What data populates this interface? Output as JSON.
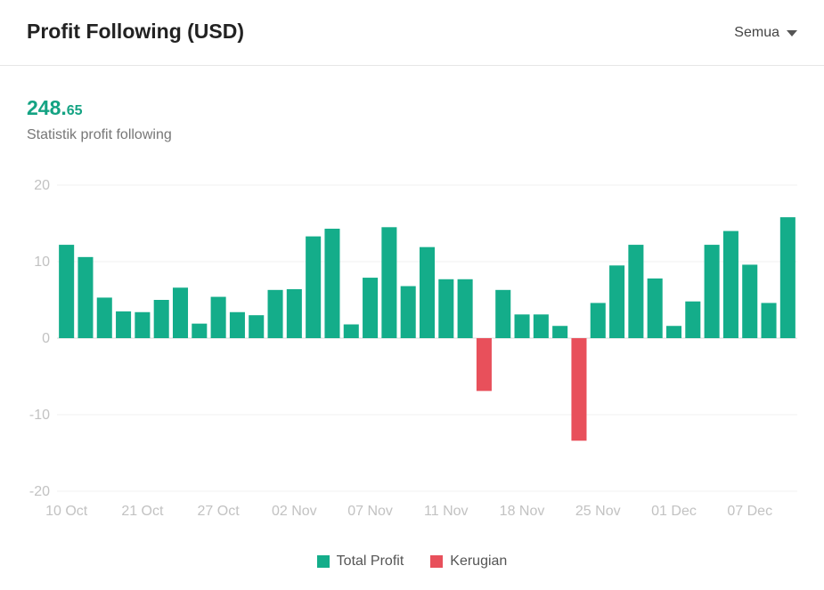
{
  "header": {
    "title": "Profit Following (USD)",
    "filter_label": "Semua"
  },
  "summary": {
    "total_int": "248.",
    "total_dec": "65",
    "subtitle": "Statistik profit following"
  },
  "colors": {
    "positive": "#14ad8a",
    "negative": "#e8505b",
    "grid": "#f0f0f0",
    "tick": "#c2c2c2"
  },
  "chart_data": {
    "type": "bar",
    "title": "Profit Following (USD)",
    "ylim": [
      -20,
      20
    ],
    "yticks": [
      20,
      10,
      0,
      -10,
      -20
    ],
    "xlabels": [
      "10 Oct",
      "21 Oct",
      "27 Oct",
      "02 Nov",
      "07 Nov",
      "11 Nov",
      "18 Nov",
      "25 Nov",
      "01 Dec",
      "07 Dec"
    ],
    "xlabel_positions": [
      0.5,
      4.5,
      8.5,
      12.5,
      16.5,
      20.5,
      24.5,
      28.5,
      32.5,
      36.5
    ],
    "values": [
      12.2,
      10.6,
      5.3,
      3.5,
      3.4,
      5.0,
      6.6,
      1.9,
      5.4,
      3.4,
      3.0,
      6.3,
      6.4,
      13.3,
      14.3,
      1.8,
      7.9,
      14.5,
      6.8,
      11.9,
      7.7,
      7.7,
      -6.9,
      6.3,
      3.1,
      3.1,
      1.6,
      -13.4,
      4.6,
      9.5,
      12.2,
      7.8,
      1.6,
      4.8,
      12.2,
      14.0,
      9.6,
      4.6,
      15.8
    ],
    "series": [
      {
        "name": "Total Profit"
      },
      {
        "name": "Kerugian"
      }
    ],
    "legend_position": "bottom-center",
    "grid": true
  }
}
